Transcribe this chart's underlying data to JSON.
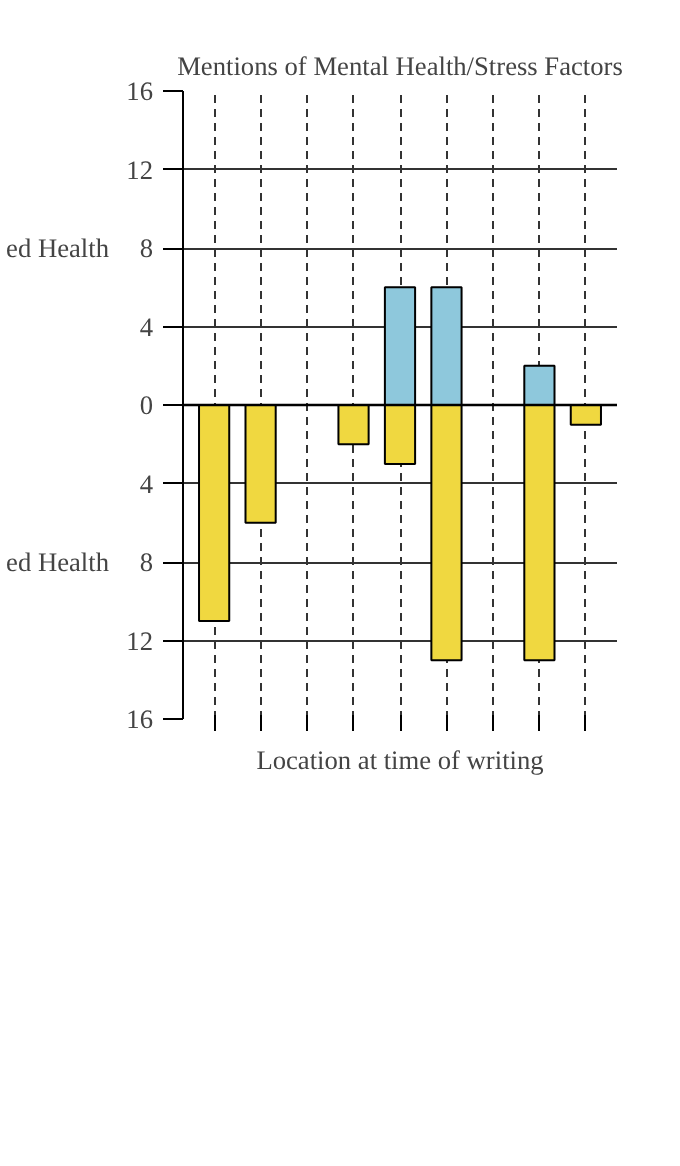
{
  "chart_data": {
    "type": "bar",
    "title": "Mentions of Mental Health/Stress Factors",
    "xlabel": "Location at time of writing",
    "categories": [
      null,
      null,
      null,
      null,
      null,
      null,
      null,
      null,
      null
    ],
    "stacked": true,
    "series": [
      {
        "color": "#8ec8dc",
        "values": [
          null,
          null,
          null,
          null,
          6,
          6,
          null,
          2,
          null
        ]
      },
      {
        "color": "#f0d840",
        "values": [
          -11,
          -6,
          null,
          -2,
          -3,
          -13,
          null,
          -13,
          -1
        ]
      }
    ],
    "ylim": [
      -16,
      16
    ],
    "yticks": [
      {
        "value": -16,
        "label": "16"
      },
      {
        "value": -12,
        "label": "12"
      },
      {
        "value": -8,
        "label": "8"
      },
      {
        "value": -4,
        "label": "4"
      },
      0,
      4,
      8,
      12,
      16
    ],
    "annotations": [
      "ed Health",
      "ed Health"
    ],
    "grid": true
  }
}
